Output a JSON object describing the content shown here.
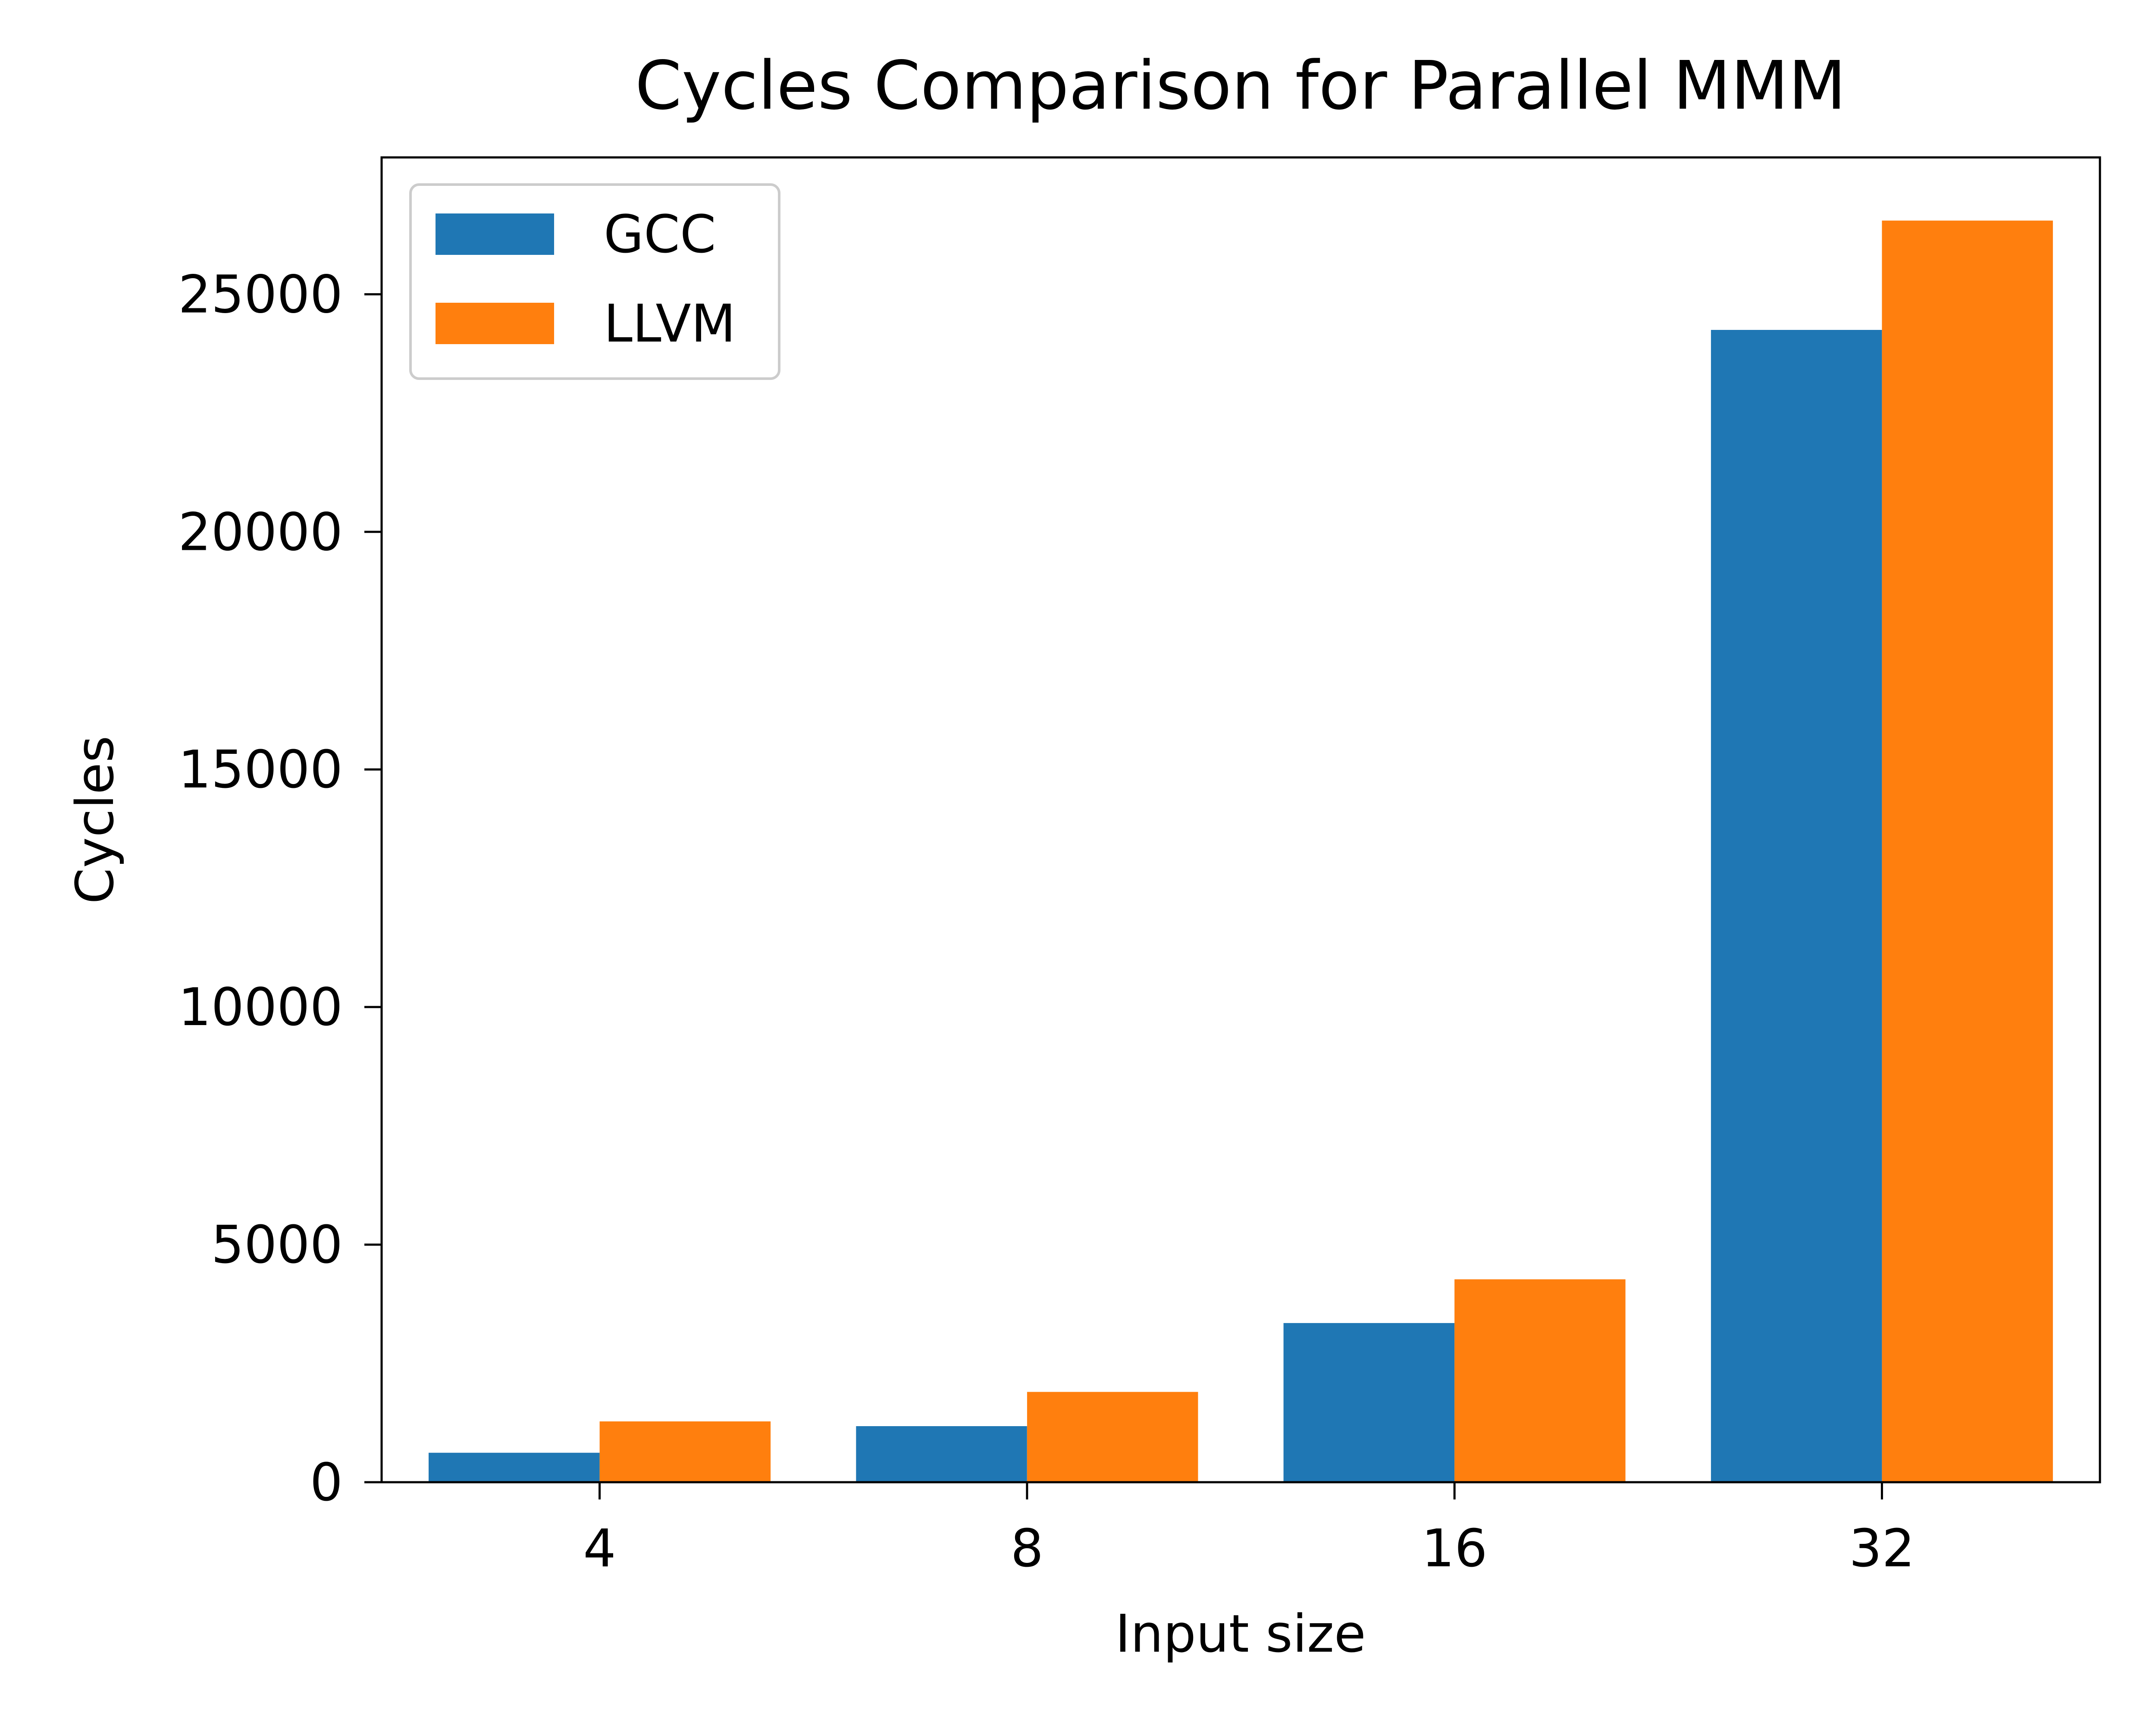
{
  "chart_data": {
    "type": "bar",
    "title": "Cycles Comparison for Parallel MMM",
    "xlabel": "Input size",
    "ylabel": "Cycles",
    "categories": [
      "4",
      "8",
      "16",
      "32"
    ],
    "series": [
      {
        "name": "GCC",
        "values": [
          620,
          1180,
          3350,
          24250
        ],
        "color": "#1f77b4"
      },
      {
        "name": "LLVM",
        "values": [
          1280,
          1900,
          4270,
          26550
        ],
        "color": "#ff7f0e"
      }
    ],
    "ylim": [
      0,
      27880
    ],
    "yticks": [
      0,
      5000,
      10000,
      15000,
      20000,
      25000
    ],
    "ytick_labels": [
      "0",
      "5000",
      "10000",
      "15000",
      "20000",
      "25000"
    ],
    "grid": false,
    "legend_position": "top-left"
  }
}
